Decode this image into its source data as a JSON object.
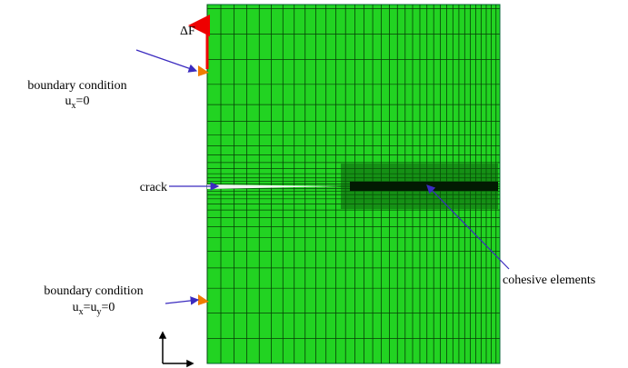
{
  "force_label": "ΔF",
  "top_support": {
    "title": "boundary condition",
    "formula": [
      {
        "text": "u"
      },
      {
        "text": "x",
        "sub": true
      },
      {
        "text": "=0"
      }
    ]
  },
  "crack_label": "crack",
  "cohesive_label": "cohesive elements",
  "bottom_support": {
    "title": "boundary condition",
    "formula": [
      {
        "text": "u"
      },
      {
        "text": "x",
        "sub": true
      },
      {
        "text": "=u"
      },
      {
        "text": "y",
        "sub": true
      },
      {
        "text": "=0"
      }
    ]
  }
}
